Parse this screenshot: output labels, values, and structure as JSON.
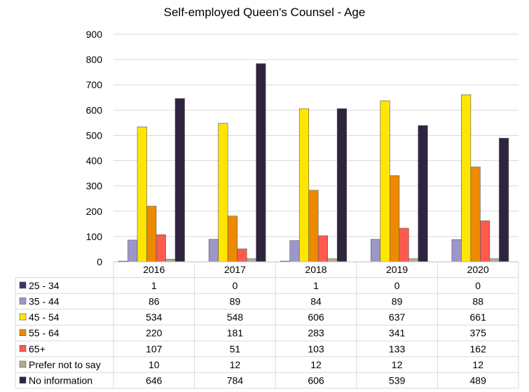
{
  "chart_data": {
    "type": "bar",
    "title": "Self-employed Queen's Counsel - Age",
    "categories": [
      "2016",
      "2017",
      "2018",
      "2019",
      "2020"
    ],
    "series": [
      {
        "name": "25 - 34",
        "color": "#3b3466",
        "values": [
          1,
          0,
          1,
          0,
          0
        ]
      },
      {
        "name": "35 - 44",
        "color": "#9c97c8",
        "values": [
          86,
          89,
          84,
          89,
          88
        ]
      },
      {
        "name": "45 - 54",
        "color": "#ffe600",
        "values": [
          534,
          548,
          606,
          637,
          661
        ]
      },
      {
        "name": "55 - 64",
        "color": "#ee8a00",
        "values": [
          220,
          181,
          283,
          341,
          375
        ]
      },
      {
        "name": "65+",
        "color": "#ff5a4e",
        "values": [
          107,
          51,
          103,
          133,
          162
        ]
      },
      {
        "name": "Prefer not to say",
        "color": "#b3ad8c",
        "values": [
          10,
          12,
          12,
          12,
          12
        ]
      },
      {
        "name": "No information",
        "color": "#2e2440",
        "values": [
          646,
          784,
          606,
          539,
          489
        ]
      }
    ],
    "ylim": [
      0,
      900
    ],
    "yticks": [
      0,
      100,
      200,
      300,
      400,
      500,
      600,
      700,
      800,
      900
    ],
    "grid": true,
    "legend": "data-table-left",
    "xlabel": "",
    "ylabel": ""
  }
}
